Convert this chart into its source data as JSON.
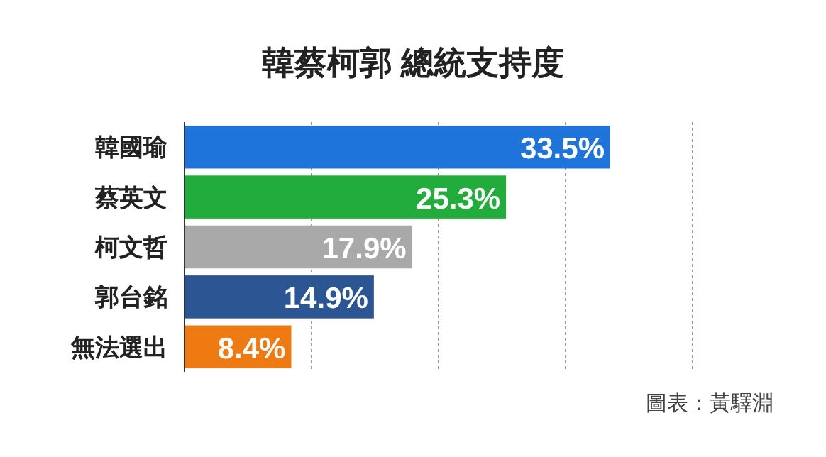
{
  "chart_data": {
    "type": "bar",
    "orientation": "horizontal",
    "title": "韓蔡柯郭 總統支持度",
    "categories": [
      "韓國瑜",
      "蔡英文",
      "柯文哲",
      "郭台銘",
      "無法選出"
    ],
    "values": [
      33.5,
      25.3,
      17.9,
      14.9,
      8.4
    ],
    "colors": [
      "#1f74dc",
      "#22ac3c",
      "#a9a9a9",
      "#2c5594",
      "#f07a12"
    ],
    "value_labels": [
      "33.5%",
      "25.3%",
      "17.9%",
      "14.9%",
      "8.4%"
    ],
    "grid": "x",
    "tick_labels": "y",
    "annotations": [
      "圖表：黃驛淵"
    ]
  }
}
